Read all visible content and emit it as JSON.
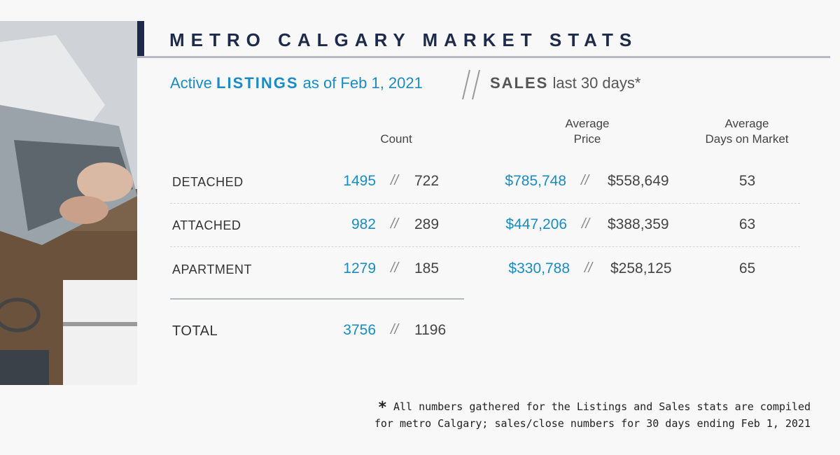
{
  "header": {
    "title": "METRO CALGARY MARKET STATS"
  },
  "subheader": {
    "listings_prefix": "Active",
    "listings_bold": "LISTINGS",
    "listings_suffix": "as of Feb 1, 2021",
    "sales_bold": "SALES",
    "sales_suffix": "last 30 days*"
  },
  "columns": {
    "count": "Count",
    "avg_price_line1": "Average",
    "avg_price_line2": "Price",
    "avg_dom_line1": "Average",
    "avg_dom_line2": "Days on Market"
  },
  "rows": [
    {
      "label": "DETACHED",
      "count_listings": "1495",
      "count_sales": "722",
      "price_listings": "$785,748",
      "price_sales": "$558,649",
      "dom": "53"
    },
    {
      "label": "ATTACHED",
      "count_listings": "982",
      "count_sales": "289",
      "price_listings": "$447,206",
      "price_sales": "$388,359",
      "dom": "63"
    },
    {
      "label": "APARTMENT",
      "count_listings": "1279",
      "count_sales": "185",
      "price_listings": "$330,788",
      "price_sales": "$258,125",
      "dom": "65"
    }
  ],
  "total": {
    "label": "TOTAL",
    "count_listings": "3756",
    "count_sales": "1196"
  },
  "separator": "//",
  "footnote": {
    "asterisk": "*",
    "line1": "All numbers gathered for the Listings and Sales stats are compiled",
    "line2": "for metro Calgary; sales/close numbers for 30 days ending Feb 1, 2021"
  },
  "colors": {
    "accent_blue": "#1a8bc4",
    "navy": "#1d2a4a"
  }
}
